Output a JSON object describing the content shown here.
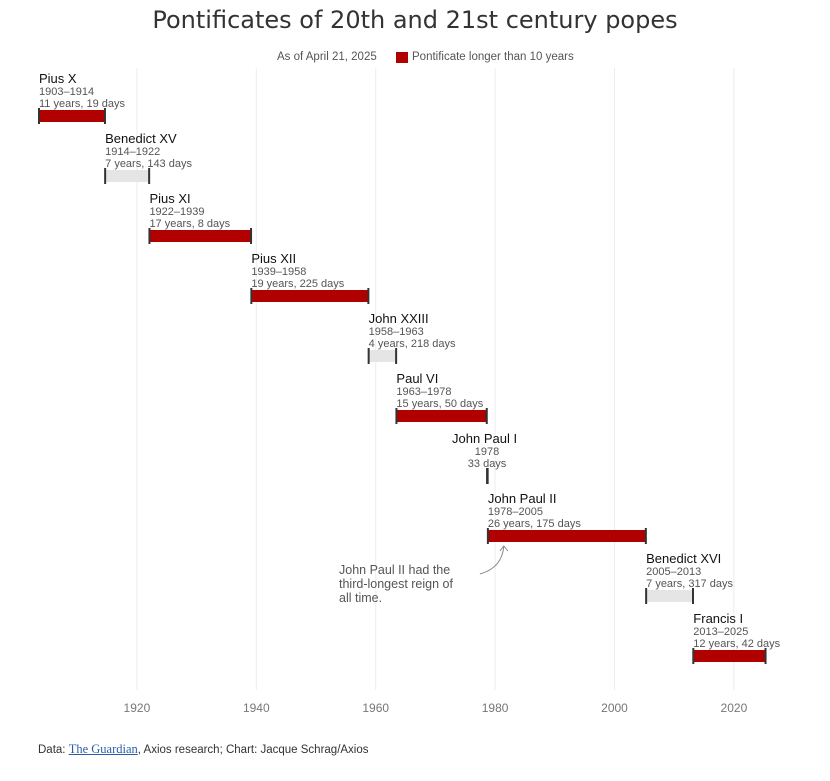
{
  "title": "Pontificates of 20th and 21st century popes",
  "as_of": "As of April 21, 2025",
  "legend_label": "Pontificate longer than 10 years",
  "colors": {
    "long": "#b00000",
    "short": "#e5e5e5",
    "grid": "#ececec",
    "cap": "#333333"
  },
  "annotation": {
    "lines": [
      "John Paul II had the",
      "third-longest reign of",
      "all time."
    ],
    "target": "John Paul II"
  },
  "footer": {
    "prefix": "Data: ",
    "source_link": "The Guardian",
    "rest": ", Axios research; Chart: Jacque Schrag/Axios"
  },
  "chart_data": {
    "type": "timeline",
    "x_ticks": [
      "1920",
      "1940",
      "1960",
      "1980",
      "2000",
      "2020"
    ],
    "xlim": [
      1903,
      2030
    ],
    "grid": true,
    "popes": [
      {
        "name": "Pius X",
        "years": "1903–1914",
        "duration": "11 years, 19 days",
        "start": 1903.6,
        "end": 1914.65,
        "long": true
      },
      {
        "name": "Benedict XV",
        "years": "1914–1922",
        "duration": "7 years, 143 days",
        "start": 1914.68,
        "end": 1922.05,
        "long": false
      },
      {
        "name": "Pius XI",
        "years": "1922–1939",
        "duration": "17 years, 8 days",
        "start": 1922.1,
        "end": 1939.12,
        "long": true
      },
      {
        "name": "Pius XII",
        "years": "1939–1958",
        "duration": "19 years, 225 days",
        "start": 1939.17,
        "end": 1958.77,
        "long": true
      },
      {
        "name": "John XXIII",
        "years": "1958–1963",
        "duration": "4 years, 218 days",
        "start": 1958.82,
        "end": 1963.42,
        "long": false
      },
      {
        "name": "Paul VI",
        "years": "1963–1978",
        "duration": "15 years, 50 days",
        "start": 1963.47,
        "end": 1978.6,
        "long": true
      },
      {
        "name": "John Paul I",
        "years": "1978",
        "duration": "33 days",
        "start": 1978.65,
        "end": 1978.75,
        "long": false
      },
      {
        "name": "John Paul II",
        "years": "1978–2005",
        "duration": "26 years, 175 days",
        "start": 1978.79,
        "end": 2005.25,
        "long": true
      },
      {
        "name": "Benedict XVI",
        "years": "2005–2013",
        "duration": "7 years, 317 days",
        "start": 2005.3,
        "end": 2013.15,
        "long": false
      },
      {
        "name": "Francis I",
        "years": "2013–2025",
        "duration": "12 years, 42 days",
        "start": 2013.2,
        "end": 2025.3,
        "long": true
      }
    ]
  }
}
